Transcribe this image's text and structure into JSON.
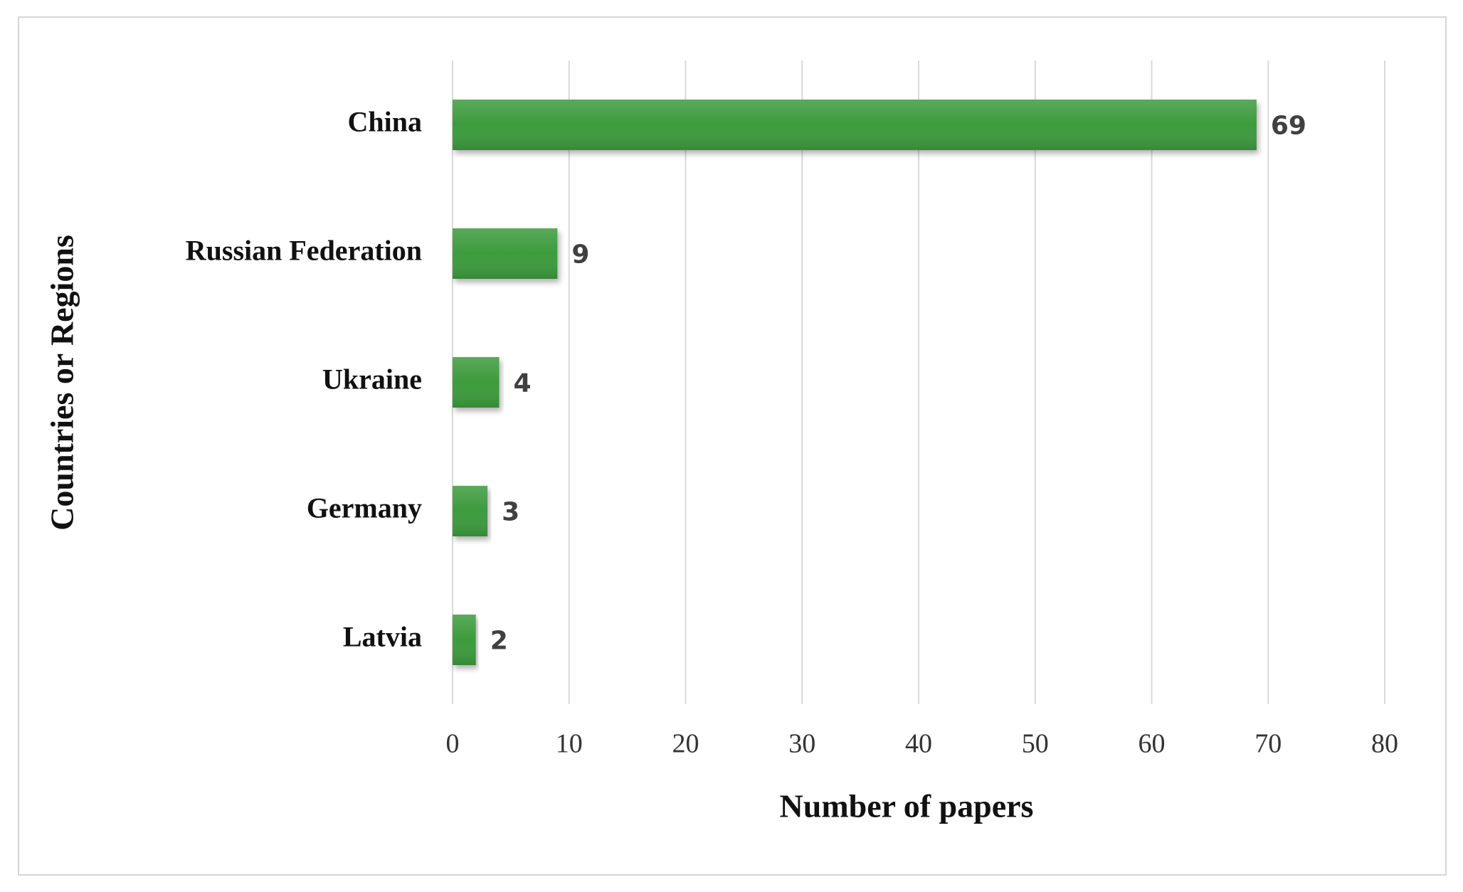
{
  "chart_data": {
    "type": "bar",
    "orientation": "horizontal",
    "x_label": "Number of papers",
    "y_label": "Countries or Regions",
    "categories": [
      "China",
      "Russian Federation",
      "Ukraine",
      "Germany",
      "Latvia"
    ],
    "values": [
      69,
      9,
      4,
      3,
      2
    ],
    "color": "#3d9b3d",
    "xlim": [
      0,
      80
    ],
    "xticks": [
      0,
      10,
      20,
      30,
      40,
      50,
      60,
      70,
      80
    ],
    "grid": true
  }
}
